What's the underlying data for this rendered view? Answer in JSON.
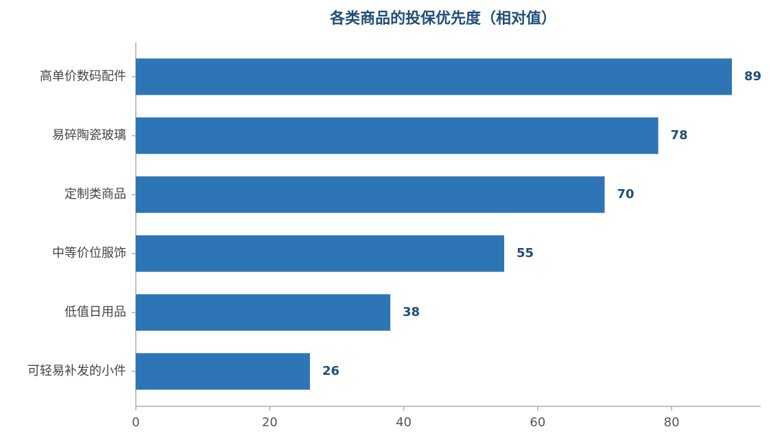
{
  "chart_data": {
    "type": "barh",
    "title": "各类商品的投保优先度（相对值）",
    "categories": [
      "高单价数码配件",
      "易碎陶瓷玻璃",
      "定制类商品",
      "中等价位服饰",
      "低值日用品",
      "可轻易补发的小件"
    ],
    "values": [
      89,
      78,
      70,
      55,
      38,
      26
    ],
    "color": "#2e75b6",
    "xlim": [
      0,
      93.3
    ],
    "xticks": [
      0,
      20,
      40,
      60,
      80
    ],
    "grid": false
  }
}
